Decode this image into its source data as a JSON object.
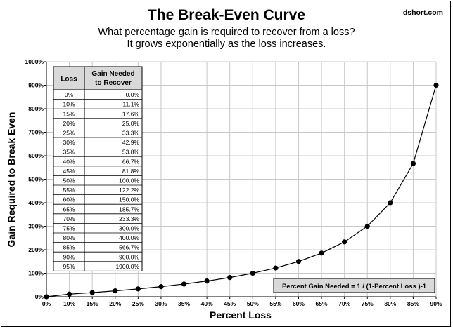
{
  "header": {
    "title": "The Break-Even Curve",
    "subtitle_line1": "What percentage gain is required to recover from a loss?",
    "subtitle_line2": "It grows exponentially  as the loss increases.",
    "source": "dshort.com"
  },
  "chart_data": {
    "type": "line",
    "title": "The Break-Even Curve",
    "xlabel": "Percent Loss",
    "ylabel": "Gain Required to Break Even",
    "x_ticks": [
      "0%",
      "10%",
      "15%",
      "20%",
      "25%",
      "30%",
      "35%",
      "40%",
      "45%",
      "50%",
      "55%",
      "60%",
      "65%",
      "70%",
      "75%",
      "80%",
      "85%",
      "90%"
    ],
    "y_ticks": [
      "0%",
      "100%",
      "200%",
      "300%",
      "400%",
      "500%",
      "600%",
      "700%",
      "800%",
      "900%",
      "1000%"
    ],
    "ylim": [
      0,
      1000
    ],
    "grid": true,
    "x": [
      0,
      10,
      15,
      20,
      25,
      30,
      35,
      40,
      45,
      50,
      55,
      60,
      65,
      70,
      75,
      80,
      85,
      90
    ],
    "values": [
      0,
      11.1,
      17.6,
      25.0,
      33.3,
      42.9,
      53.8,
      66.7,
      81.8,
      100.0,
      122.2,
      150.0,
      185.7,
      233.3,
      300.0,
      400.0,
      566.7,
      900.0
    ],
    "marker_color": "#000000",
    "line_color": "#000000"
  },
  "table": {
    "header_loss": "Loss",
    "header_gain_line1": "Gain Needed",
    "header_gain_line2": "to Recover",
    "rows": [
      {
        "loss": "0%",
        "gain": "0.0%"
      },
      {
        "loss": "10%",
        "gain": "11.1%"
      },
      {
        "loss": "15%",
        "gain": "17.6%"
      },
      {
        "loss": "20%",
        "gain": "25.0%"
      },
      {
        "loss": "25%",
        "gain": "33.3%"
      },
      {
        "loss": "30%",
        "gain": "42.9%"
      },
      {
        "loss": "35%",
        "gain": "53.8%"
      },
      {
        "loss": "40%",
        "gain": "66.7%"
      },
      {
        "loss": "45%",
        "gain": "81.8%"
      },
      {
        "loss": "50%",
        "gain": "100.0%"
      },
      {
        "loss": "55%",
        "gain": "122.2%"
      },
      {
        "loss": "60%",
        "gain": "150.0%"
      },
      {
        "loss": "65%",
        "gain": "185.7%"
      },
      {
        "loss": "70%",
        "gain": "233.3%"
      },
      {
        "loss": "75%",
        "gain": "300.0%"
      },
      {
        "loss": "80%",
        "gain": "400.0%"
      },
      {
        "loss": "85%",
        "gain": "566.7%"
      },
      {
        "loss": "90%",
        "gain": "900.0%"
      },
      {
        "loss": "95%",
        "gain": "1900.0%"
      }
    ]
  },
  "formula": "Percent Gain Needed  =  1 / (1-Percent Loss )-1",
  "colors": {
    "header_fill": "#d9d9d9",
    "formula_fill": "#d9d9d9",
    "grid": "#c8c8c8"
  }
}
